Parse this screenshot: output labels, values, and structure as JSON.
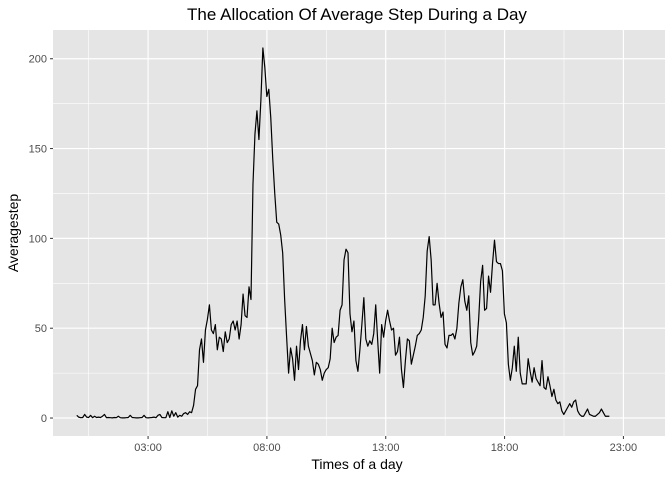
{
  "chart_data": {
    "type": "line",
    "title": "The Allocation Of Average Step During a Day",
    "xlabel": "Times of a day",
    "ylabel": "Averagestep",
    "x_unit": "hour",
    "x_start": 0.0,
    "x_step": 0.0833,
    "xlim": [
      -1.0,
      24.75
    ],
    "ylim": [
      -10,
      216
    ],
    "x_ticks": [
      {
        "value": 3,
        "label": "03:00"
      },
      {
        "value": 8,
        "label": "08:00"
      },
      {
        "value": 13,
        "label": "13:00"
      },
      {
        "value": 18,
        "label": "18:00"
      },
      {
        "value": 23,
        "label": "23:00"
      }
    ],
    "y_ticks": [
      {
        "value": 0,
        "label": "0"
      },
      {
        "value": 50,
        "label": "50"
      },
      {
        "value": 100,
        "label": "100"
      },
      {
        "value": 150,
        "label": "150"
      },
      {
        "value": 200,
        "label": "200"
      }
    ],
    "grid": true,
    "colors": {
      "panel": "#e5e5e5",
      "grid": "#ffffff",
      "line": "#000000"
    },
    "series": [
      {
        "values": [
          1.5,
          0.5,
          0.2,
          0.3,
          2.0,
          0.5,
          0.3,
          1.5,
          0.2,
          1.0,
          0.3,
          0.5,
          0.3,
          1.0,
          2.0,
          0.2,
          0.3,
          0.2,
          0.1,
          0.3,
          0.2,
          1.0,
          0.2,
          0.1,
          0.1,
          0.2,
          0.3,
          1.5,
          0.3,
          0.2,
          0.1,
          0.1,
          0.2,
          0.3,
          1.5,
          0.2,
          0.1,
          0.2,
          0.3,
          0.5,
          0.2,
          1.5,
          2.0,
          0.3,
          0.2,
          0.2,
          3.5,
          0.3,
          4.0,
          1.0,
          3.0,
          0.5,
          1.5,
          1.0,
          2.5,
          3.0,
          2.0,
          3.5,
          3.0,
          7.0,
          16.0,
          18.0,
          38.0,
          44.0,
          31.0,
          49.0,
          55.0,
          63.0,
          49.0,
          47.0,
          52.0,
          38.0,
          45.0,
          44.0,
          37.0,
          48.0,
          42.0,
          44.0,
          52.0,
          54.0,
          49.0,
          54.0,
          44.0,
          52.0,
          69.0,
          57.0,
          56.0,
          73.0,
          66.0,
          130.0,
          158.0,
          171.0,
          155.0,
          177.0,
          206.0,
          195.0,
          179.0,
          183.0,
          167.0,
          144.0,
          125.0,
          109.0,
          108.0,
          102.0,
          92.0,
          66.0,
          45.0,
          25.0,
          39.0,
          33.0,
          21.0,
          40.0,
          27.0,
          43.0,
          52.0,
          38.0,
          51.0,
          40.0,
          36.0,
          32.0,
          24.0,
          31.0,
          30.0,
          27.0,
          21.0,
          25.0,
          27.0,
          28.0,
          33.0,
          50.0,
          42.0,
          45.0,
          46.0,
          60.0,
          63.0,
          88.0,
          94.0,
          92.0,
          58.0,
          48.0,
          54.0,
          32.0,
          26.0,
          38.0,
          52.0,
          67.0,
          44.0,
          40.0,
          43.0,
          41.0,
          47.0,
          63.0,
          43.0,
          25.0,
          52.0,
          45.0,
          54.0,
          60.0,
          54.0,
          49.0,
          50.0,
          35.0,
          37.0,
          45.0,
          27.0,
          17.0,
          32.0,
          44.0,
          43.0,
          30.0,
          35.0,
          40.0,
          46.0,
          47.0,
          49.0,
          56.0,
          68.0,
          93.0,
          101.0,
          88.0,
          63.0,
          63.0,
          75.0,
          64.0,
          56.0,
          59.0,
          41.0,
          39.0,
          46.0,
          46.0,
          47.0,
          44.0,
          50.0,
          64.0,
          73.0,
          77.0,
          65.0,
          60.0,
          68.0,
          42.0,
          35.0,
          37.0,
          40.0,
          55.0,
          76.0,
          85.0,
          60.0,
          61.0,
          79.0,
          70.0,
          86.0,
          99.0,
          87.0,
          86.0,
          86.0,
          82.0,
          58.0,
          53.0,
          30.0,
          21.0,
          28.0,
          40.0,
          26.0,
          45.0,
          25.0,
          19.0,
          19.0,
          19.0,
          33.0,
          26.0,
          20.0,
          28.0,
          22.0,
          20.0,
          18.0,
          32.0,
          17.0,
          16.0,
          23.0,
          18.0,
          12.0,
          16.0,
          10.0,
          8.0,
          9.0,
          4.0,
          2.0,
          4.0,
          6.0,
          8.0,
          6.0,
          9.0,
          10.0,
          4.0,
          2.0,
          1.0,
          1.0,
          3.0,
          5.0,
          2.0,
          1.5,
          1.0,
          1.0,
          2.0,
          3.0,
          5.0,
          3.0,
          1.0,
          1.0,
          1.0
        ]
      }
    ]
  }
}
